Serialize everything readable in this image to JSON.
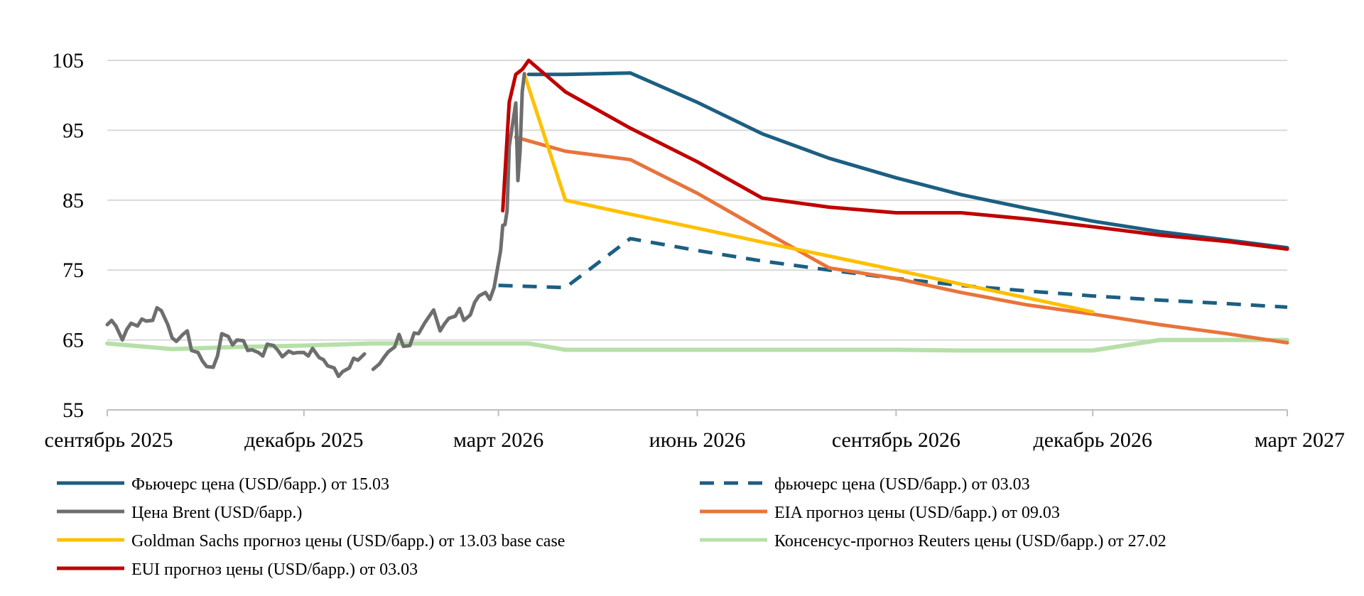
{
  "chart_data": {
    "type": "line",
    "x_type": "date",
    "ylim": [
      55,
      105
    ],
    "yticks": [
      55,
      65,
      75,
      85,
      95,
      105
    ],
    "xlim": [
      "2025-09-01",
      "2027-03-01"
    ],
    "xticks": [
      {
        "date": "2025-09-01",
        "label": "сентябрь 2025"
      },
      {
        "date": "2025-12-01",
        "label": "декабрь 2025"
      },
      {
        "date": "2026-03-01",
        "label": "март 2026"
      },
      {
        "date": "2026-06-01",
        "label": "июнь 2026"
      },
      {
        "date": "2026-09-01",
        "label": "сентябрь 2026"
      },
      {
        "date": "2026-12-01",
        "label": "декабрь 2026"
      },
      {
        "date": "2027-03-01",
        "label": "март 2027"
      }
    ],
    "grid": "horizontal",
    "legend_position": "bottom",
    "series": [
      {
        "name": "Фьючерс цена (USD/барр.) от 15.03",
        "color": "#1c5f82",
        "dash": "solid",
        "points": [
          [
            "2026-03-15",
            103.0
          ],
          [
            "2026-04-01",
            103.0
          ],
          [
            "2026-05-01",
            103.2
          ],
          [
            "2026-06-01",
            99.0
          ],
          [
            "2026-07-01",
            94.5
          ],
          [
            "2026-08-01",
            91.0
          ],
          [
            "2026-09-01",
            88.2
          ],
          [
            "2026-10-01",
            85.8
          ],
          [
            "2026-11-01",
            83.8
          ],
          [
            "2026-12-01",
            82.0
          ],
          [
            "2027-01-01",
            80.5
          ],
          [
            "2027-02-01",
            79.3
          ],
          [
            "2027-03-01",
            78.2
          ]
        ]
      },
      {
        "name": "фьючерс цена (USD/барр.) от 03.03",
        "color": "#1c5f82",
        "dash": "dashed",
        "points": [
          [
            "2026-03-01",
            72.8
          ],
          [
            "2026-04-01",
            72.5
          ],
          [
            "2026-05-01",
            79.5
          ],
          [
            "2026-06-01",
            77.8
          ],
          [
            "2026-07-01",
            76.3
          ],
          [
            "2026-08-01",
            75.0
          ],
          [
            "2026-09-01",
            73.8
          ],
          [
            "2026-10-01",
            72.8
          ],
          [
            "2026-11-01",
            72.0
          ],
          [
            "2026-12-01",
            71.3
          ],
          [
            "2027-01-01",
            70.7
          ],
          [
            "2027-02-01",
            70.2
          ],
          [
            "2027-03-01",
            69.7
          ]
        ]
      },
      {
        "name": "Цена Brent (USD/барр.)",
        "color": "#6e6e6e",
        "dash": "solid",
        "points": [
          [
            "2025-09-01",
            67.2
          ],
          [
            "2025-09-03",
            67.8
          ],
          [
            "2025-09-05",
            67.0
          ],
          [
            "2025-09-08",
            65.0
          ],
          [
            "2025-09-10",
            66.5
          ],
          [
            "2025-09-12",
            67.4
          ],
          [
            "2025-09-15",
            67.0
          ],
          [
            "2025-09-17",
            68.0
          ],
          [
            "2025-09-19",
            67.7
          ],
          [
            "2025-09-22",
            67.8
          ],
          [
            "2025-09-24",
            69.6
          ],
          [
            "2025-09-26",
            69.2
          ],
          [
            "2025-09-29",
            67.2
          ],
          [
            "2025-10-01",
            65.3
          ],
          [
            "2025-10-03",
            64.8
          ],
          [
            "2025-10-06",
            65.8
          ],
          [
            "2025-10-08",
            66.3
          ],
          [
            "2025-10-10",
            63.5
          ],
          [
            "2025-10-13",
            63.2
          ],
          [
            "2025-10-15",
            62.0
          ],
          [
            "2025-10-17",
            61.2
          ],
          [
            "2025-10-20",
            61.1
          ],
          [
            "2025-10-22",
            62.7
          ],
          [
            "2025-10-24",
            65.9
          ],
          [
            "2025-10-27",
            65.5
          ],
          [
            "2025-10-29",
            64.3
          ],
          [
            "2025-10-31",
            65.0
          ],
          [
            "2025-11-03",
            64.9
          ],
          [
            "2025-11-05",
            63.5
          ],
          [
            "2025-11-07",
            63.6
          ],
          [
            "2025-11-10",
            63.2
          ],
          [
            "2025-11-12",
            62.7
          ],
          [
            "2025-11-14",
            64.4
          ],
          [
            "2025-11-17",
            64.2
          ],
          [
            "2025-11-19",
            63.5
          ],
          [
            "2025-11-21",
            62.6
          ],
          [
            "2025-11-24",
            63.4
          ],
          [
            "2025-11-26",
            63.1
          ],
          [
            "2025-11-28",
            63.2
          ],
          [
            "2025-12-01",
            63.2
          ],
          [
            "2025-12-03",
            62.7
          ],
          [
            "2025-12-05",
            63.8
          ],
          [
            "2025-12-08",
            62.5
          ],
          [
            "2025-12-10",
            62.2
          ],
          [
            "2025-12-12",
            61.3
          ],
          [
            "2025-12-15",
            61.0
          ],
          [
            "2025-12-17",
            59.8
          ],
          [
            "2025-12-19",
            60.5
          ],
          [
            "2025-12-22",
            61.0
          ],
          [
            "2025-12-24",
            62.4
          ],
          [
            "2025-12-26",
            62.1
          ],
          [
            "2025-12-29",
            63.0
          ],
          [
            "2026-01-02",
            60.8
          ],
          [
            "2026-01-05",
            61.6
          ],
          [
            "2026-01-07",
            62.5
          ],
          [
            "2026-01-09",
            63.3
          ],
          [
            "2026-01-12",
            64.0
          ],
          [
            "2026-01-14",
            65.8
          ],
          [
            "2026-01-16",
            64.1
          ],
          [
            "2026-01-19",
            64.2
          ],
          [
            "2026-01-21",
            66.0
          ],
          [
            "2026-01-23",
            65.9
          ],
          [
            "2026-01-26",
            67.5
          ],
          [
            "2026-01-28",
            68.4
          ],
          [
            "2026-01-30",
            69.3
          ],
          [
            "2026-02-02",
            66.3
          ],
          [
            "2026-02-04",
            67.3
          ],
          [
            "2026-02-06",
            68.1
          ],
          [
            "2026-02-09",
            68.4
          ],
          [
            "2026-02-11",
            69.5
          ],
          [
            "2026-02-13",
            67.8
          ],
          [
            "2026-02-16",
            68.6
          ],
          [
            "2026-02-18",
            70.4
          ],
          [
            "2026-02-20",
            71.3
          ],
          [
            "2026-02-23",
            71.8
          ],
          [
            "2026-02-25",
            70.8
          ],
          [
            "2026-02-27",
            72.5
          ],
          [
            "2026-03-02",
            77.8
          ],
          [
            "2026-03-03",
            81.4
          ],
          [
            "2026-03-04",
            81.5
          ],
          [
            "2026-03-05",
            83.5
          ],
          [
            "2026-03-06",
            92.7
          ],
          [
            "2026-03-09",
            98.9
          ],
          [
            "2026-03-10",
            87.8
          ],
          [
            "2026-03-11",
            91.9
          ],
          [
            "2026-03-12",
            100.5
          ],
          [
            "2026-03-13",
            103.1
          ]
        ]
      },
      {
        "name": "EIA прогноз цены (USD/барр.) от 09.03",
        "color": "#e8743b",
        "dash": "solid",
        "points": [
          [
            "2026-03-09",
            94.0
          ],
          [
            "2026-04-01",
            92.0
          ],
          [
            "2026-05-01",
            90.8
          ],
          [
            "2026-06-01",
            86.0
          ],
          [
            "2026-07-01",
            80.7
          ],
          [
            "2026-08-01",
            75.3
          ],
          [
            "2026-09-01",
            73.8
          ],
          [
            "2026-10-01",
            71.8
          ],
          [
            "2026-11-01",
            70.0
          ],
          [
            "2026-12-01",
            68.7
          ],
          [
            "2027-01-01",
            67.2
          ],
          [
            "2027-02-01",
            65.9
          ],
          [
            "2027-03-01",
            64.6
          ]
        ]
      },
      {
        "name": "Goldman Sachs прогноз цены (USD/барр.) от 13.03 base case",
        "color": "#ffc000",
        "dash": "solid",
        "points": [
          [
            "2026-03-13",
            103.0
          ],
          [
            "2026-04-01",
            85.0
          ],
          [
            "2026-05-01",
            83.0
          ],
          [
            "2026-06-01",
            81.0
          ],
          [
            "2026-07-01",
            79.0
          ],
          [
            "2026-08-01",
            77.0
          ],
          [
            "2026-09-01",
            75.0
          ],
          [
            "2026-10-01",
            73.0
          ],
          [
            "2026-11-01",
            71.0
          ],
          [
            "2026-12-01",
            69.0
          ]
        ]
      },
      {
        "name": "Консенсус-прогноз Reuters цены (USD/барр.) от 27.02",
        "color": "#b6e0a8",
        "dash": "solid",
        "points": [
          [
            "2025-09-01",
            64.5
          ],
          [
            "2025-10-01",
            63.7
          ],
          [
            "2025-11-01",
            64.0
          ],
          [
            "2025-12-01",
            64.2
          ],
          [
            "2026-01-01",
            64.5
          ],
          [
            "2026-02-01",
            64.5
          ],
          [
            "2026-03-01",
            64.5
          ],
          [
            "2026-03-15",
            64.5
          ],
          [
            "2026-04-01",
            63.6
          ],
          [
            "2026-05-01",
            63.6
          ],
          [
            "2026-06-01",
            63.6
          ],
          [
            "2026-07-01",
            63.6
          ],
          [
            "2026-08-01",
            63.6
          ],
          [
            "2026-09-01",
            63.6
          ],
          [
            "2026-10-01",
            63.5
          ],
          [
            "2026-11-01",
            63.5
          ],
          [
            "2026-12-01",
            63.5
          ],
          [
            "2027-01-01",
            65.0
          ],
          [
            "2027-02-01",
            65.0
          ],
          [
            "2027-03-01",
            65.0
          ]
        ]
      },
      {
        "name": "EUI прогноз цены (USD/барр.) от 03.03",
        "color": "#c00000",
        "dash": "solid",
        "points": [
          [
            "2026-03-03",
            83.5
          ],
          [
            "2026-03-06",
            99.0
          ],
          [
            "2026-03-09",
            103.0
          ],
          [
            "2026-03-12",
            103.7
          ],
          [
            "2026-03-15",
            105.0
          ],
          [
            "2026-04-01",
            100.5
          ],
          [
            "2026-05-01",
            95.3
          ],
          [
            "2026-06-01",
            90.5
          ],
          [
            "2026-07-01",
            85.3
          ],
          [
            "2026-08-01",
            84.0
          ],
          [
            "2026-09-01",
            83.2
          ],
          [
            "2026-10-01",
            83.2
          ],
          [
            "2026-11-01",
            82.3
          ],
          [
            "2026-12-01",
            81.2
          ],
          [
            "2027-01-01",
            80.0
          ],
          [
            "2027-02-01",
            79.1
          ],
          [
            "2027-03-01",
            78.0
          ]
        ]
      }
    ]
  }
}
